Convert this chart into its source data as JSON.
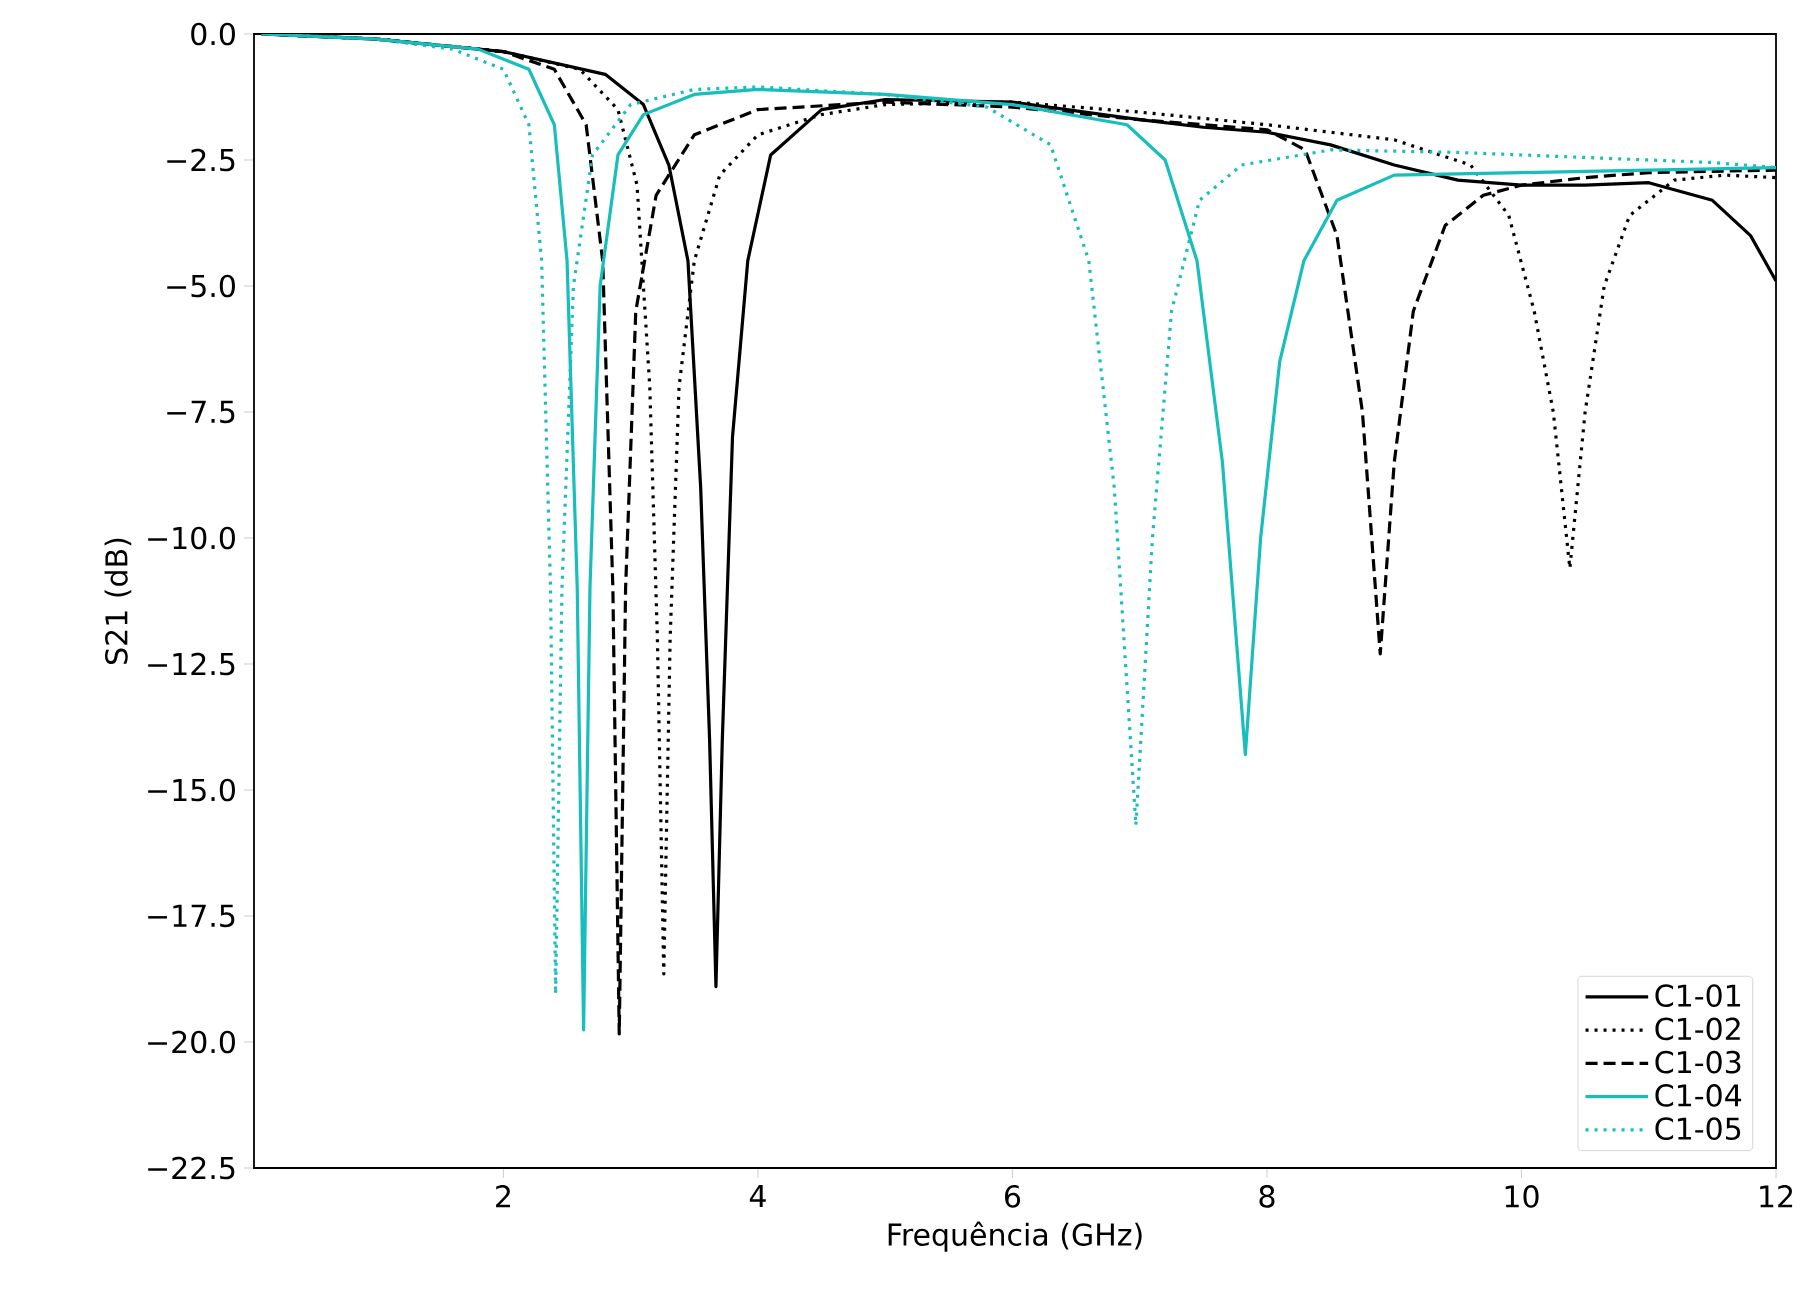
{
  "chart_data": {
    "type": "line",
    "xlabel": "Frequência (GHz)",
    "ylabel": "S21 (dB)",
    "xlim": [
      0.04,
      12
    ],
    "ylim": [
      -22.5,
      0
    ],
    "xticks": [
      2,
      4,
      6,
      8,
      10,
      12
    ],
    "yticks": [
      {
        "value": 0,
        "label": "0.0"
      },
      {
        "value": -2.5,
        "label": "−2.5"
      },
      {
        "value": -5,
        "label": "−5.0"
      },
      {
        "value": -7.5,
        "label": "−7.5"
      },
      {
        "value": -10,
        "label": "−10.0"
      },
      {
        "value": -12.5,
        "label": "−12.5"
      },
      {
        "value": -15,
        "label": "−15.0"
      },
      {
        "value": -17.5,
        "label": "−17.5"
      },
      {
        "value": -20,
        "label": "−20.0"
      },
      {
        "value": -22.5,
        "label": "−22.5"
      }
    ],
    "grid": false,
    "legend": "bottom right",
    "marker": "none",
    "series": [
      {
        "name": "C1-01",
        "color": "#000000",
        "line_style": "solid",
        "x": [
          0.1,
          1,
          2,
          2.8,
          3.1,
          3.3,
          3.45,
          3.55,
          3.62,
          3.67,
          3.72,
          3.8,
          3.92,
          4.1,
          4.5,
          5,
          6,
          7,
          7.5,
          8,
          8.5,
          9,
          9.5,
          10,
          10.5,
          11,
          11.5,
          11.8,
          12
        ],
        "values": [
          0,
          -0.1,
          -0.35,
          -0.8,
          -1.4,
          -2.6,
          -4.5,
          -9,
          -14,
          -18.9,
          -14,
          -8,
          -4.5,
          -2.4,
          -1.5,
          -1.3,
          -1.35,
          -1.7,
          -1.85,
          -1.95,
          -2.2,
          -2.6,
          -2.9,
          -3.0,
          -3.0,
          -2.95,
          -3.3,
          -4.0,
          -4.9
        ]
      },
      {
        "name": "C1-02",
        "color": "#000000",
        "line_style": "dotted",
        "x": [
          0.1,
          1,
          2,
          2.6,
          2.9,
          3.05,
          3.15,
          3.21,
          3.26,
          3.31,
          3.38,
          3.5,
          3.7,
          4,
          4.5,
          5,
          6,
          7,
          8,
          9,
          9.6,
          9.9,
          10.1,
          10.25,
          10.38,
          10.5,
          10.65,
          10.85,
          11.2,
          11.6,
          12
        ],
        "values": [
          0,
          -0.1,
          -0.35,
          -0.7,
          -1.5,
          -3.0,
          -7,
          -12,
          -18.65,
          -12,
          -7,
          -4.5,
          -2.8,
          -2.0,
          -1.6,
          -1.4,
          -1.35,
          -1.55,
          -1.8,
          -2.1,
          -2.6,
          -3.6,
          -5.5,
          -7.5,
          -10.6,
          -7.5,
          -5,
          -3.6,
          -2.9,
          -2.8,
          -2.85
        ]
      },
      {
        "name": "C1-03",
        "color": "#000000",
        "line_style": "dashed",
        "x": [
          0.1,
          1,
          2,
          2.4,
          2.65,
          2.78,
          2.86,
          2.91,
          2.96,
          3.04,
          3.2,
          3.5,
          4,
          5,
          6,
          7,
          8,
          8.3,
          8.55,
          8.75,
          8.89,
          9.0,
          9.15,
          9.4,
          9.7,
          10,
          10.5,
          11,
          12
        ],
        "values": [
          0,
          -0.1,
          -0.35,
          -0.7,
          -1.8,
          -4.5,
          -11,
          -19.84,
          -11,
          -5.5,
          -3.2,
          -2.0,
          -1.5,
          -1.35,
          -1.45,
          -1.7,
          -1.9,
          -2.3,
          -4,
          -7.5,
          -12.3,
          -8.5,
          -5.5,
          -3.8,
          -3.2,
          -3.0,
          -2.85,
          -2.75,
          -2.7
        ]
      },
      {
        "name": "C1-04",
        "color": "#17bebb",
        "line_style": "solid",
        "x": [
          0.1,
          1,
          1.8,
          2.2,
          2.4,
          2.5,
          2.58,
          2.63,
          2.68,
          2.76,
          2.9,
          3.1,
          3.5,
          4,
          5,
          6,
          6.9,
          7.2,
          7.45,
          7.65,
          7.83,
          7.95,
          8.1,
          8.29,
          8.55,
          9,
          10,
          11,
          12
        ],
        "values": [
          0,
          -0.1,
          -0.3,
          -0.7,
          -1.8,
          -4.5,
          -11,
          -19.76,
          -11,
          -5,
          -2.4,
          -1.6,
          -1.2,
          -1.1,
          -1.2,
          -1.4,
          -1.8,
          -2.5,
          -4.5,
          -8.5,
          -14.3,
          -10,
          -6.5,
          -4.5,
          -3.3,
          -2.8,
          -2.75,
          -2.7,
          -2.65
        ]
      },
      {
        "name": "C1-05",
        "color": "#17bebb",
        "line_style": "dotted",
        "x": [
          0.1,
          1,
          1.6,
          2.0,
          2.2,
          2.3,
          2.37,
          2.41,
          2.46,
          2.55,
          2.7,
          3.0,
          3.5,
          4,
          5,
          5.8,
          6.3,
          6.6,
          6.8,
          6.97,
          7.1,
          7.25,
          7.47,
          7.8,
          8.5,
          9.5,
          10.5,
          11.5,
          12
        ],
        "values": [
          0,
          -0.1,
          -0.3,
          -0.7,
          -1.8,
          -4.5,
          -11,
          -19.05,
          -11,
          -5,
          -2.4,
          -1.4,
          -1.1,
          -1.05,
          -1.2,
          -1.45,
          -2.2,
          -4.5,
          -9,
          -15.7,
          -10,
          -5.5,
          -3.3,
          -2.6,
          -2.3,
          -2.35,
          -2.45,
          -2.55,
          -2.65
        ]
      }
    ]
  }
}
